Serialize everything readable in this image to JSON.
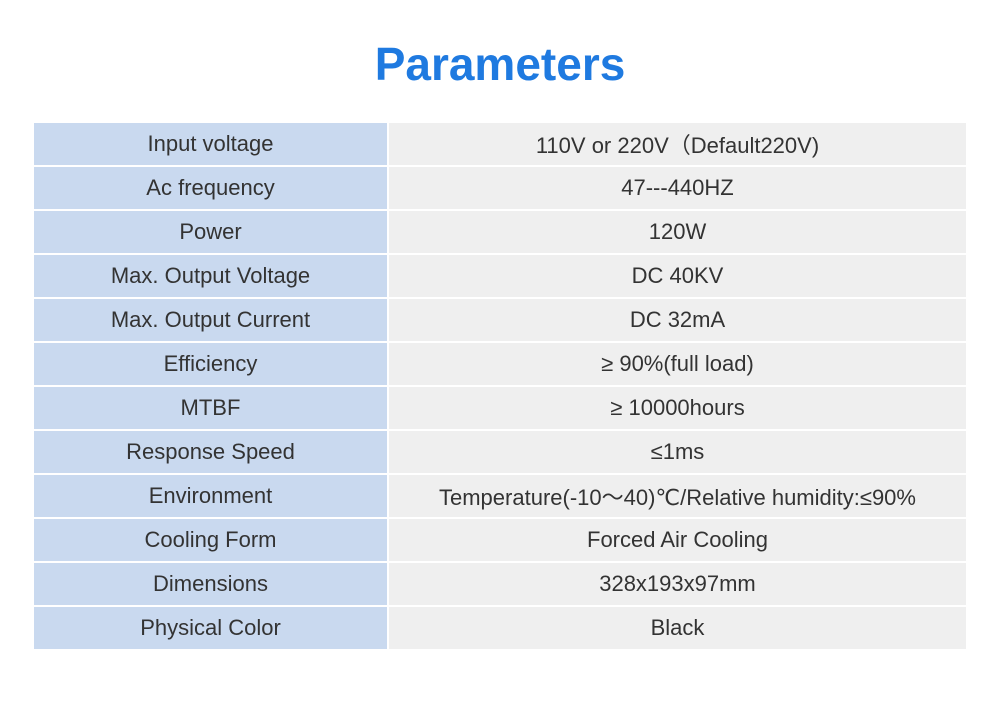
{
  "title": "Parameters",
  "specs": [
    {
      "label": "Input voltage",
      "value": "110V or 220V（Default220V)"
    },
    {
      "label": "Ac frequency",
      "value": "47---440HZ"
    },
    {
      "label": "Power",
      "value": "120W"
    },
    {
      "label": "Max. Output Voltage",
      "value": "DC 40KV"
    },
    {
      "label": "Max. Output Current",
      "value": "DC 32mA"
    },
    {
      "label": "Efficiency",
      "value": "≥ 90%(full load)"
    },
    {
      "label": "MTBF",
      "value": "≥ 10000hours"
    },
    {
      "label": "Response Speed",
      "value": "≤1ms"
    },
    {
      "label": "Environment",
      "value": "Temperature(-10～40)℃/Relative humidity:≤90%"
    },
    {
      "label": "Cooling Form",
      "value": "Forced Air Cooling"
    },
    {
      "label": "Dimensions",
      "value": "328x193x97mm"
    },
    {
      "label": "Physical Color",
      "value": "Black"
    }
  ]
}
